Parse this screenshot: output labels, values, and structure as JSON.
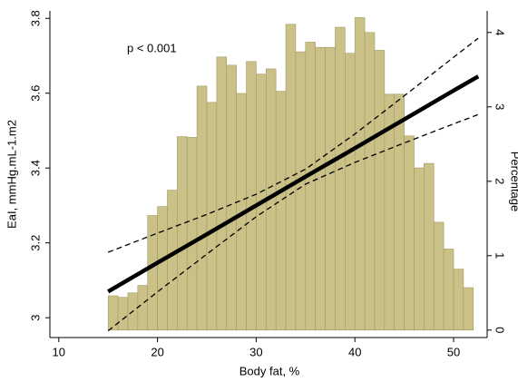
{
  "chart_data": {
    "type": "histogram",
    "xlabel": "Body fat, %",
    "ylabel": "EaI, mmHg.mL-1.m2",
    "y2label": "Percentage",
    "annotation": "p < 0.001",
    "bins": [
      15,
      16,
      17,
      18,
      19,
      20,
      21,
      22,
      23,
      24,
      25,
      26,
      27,
      28,
      29,
      30,
      31,
      32,
      33,
      34,
      35,
      36,
      37,
      38,
      39,
      40,
      41,
      42,
      43,
      44,
      45,
      46,
      47,
      48,
      49,
      50,
      51,
      52
    ],
    "values": [
      0.46,
      0.44,
      0.5,
      0.6,
      1.54,
      1.66,
      1.88,
      2.6,
      2.59,
      3.28,
      3.06,
      3.67,
      3.56,
      3.18,
      3.61,
      3.44,
      3.51,
      3.21,
      4.11,
      3.74,
      3.87,
      3.8,
      3.8,
      4.07,
      3.72,
      4.2,
      4.0,
      3.76,
      3.17,
      3.17,
      2.61,
      2.18,
      2.24,
      1.45,
      1.09,
      0.82,
      0.57
    ],
    "color": "#c9c187",
    "edgecolor": "#a39b60",
    "axis": "y2",
    "lines": [
      {
        "x": [
          15,
          20,
          25,
          30,
          35,
          40,
          45,
          50,
          52.5
        ],
        "values": [
          3.07,
          3.147,
          3.223,
          3.3,
          3.377,
          3.453,
          3.53,
          3.607,
          3.645
        ],
        "color": "#000000",
        "style": "solid"
      },
      {
        "x": [
          15,
          20,
          25,
          30,
          35,
          40,
          45,
          50,
          52.5
        ],
        "values": [
          3.175,
          3.226,
          3.276,
          3.33,
          3.397,
          3.491,
          3.593,
          3.696,
          3.747
        ],
        "color": "#000000",
        "style": "dashed"
      },
      {
        "x": [
          15,
          20,
          25,
          30,
          35,
          40,
          45,
          50,
          52.5
        ],
        "values": [
          2.965,
          3.069,
          3.17,
          3.27,
          3.357,
          3.415,
          3.467,
          3.518,
          3.543
        ],
        "color": "#000000",
        "style": "dashed"
      }
    ],
    "xlim": [
      9.1,
      53.4
    ],
    "xticks": [
      10,
      20,
      30,
      40,
      50
    ],
    "ylim": [
      2.947,
      3.82
    ],
    "yticks": [
      3,
      3.2,
      3.4,
      3.6,
      3.8
    ],
    "y2lim": [
      -0.1,
      4.29
    ],
    "y2ticks": [
      0,
      1,
      2,
      3,
      4
    ]
  }
}
